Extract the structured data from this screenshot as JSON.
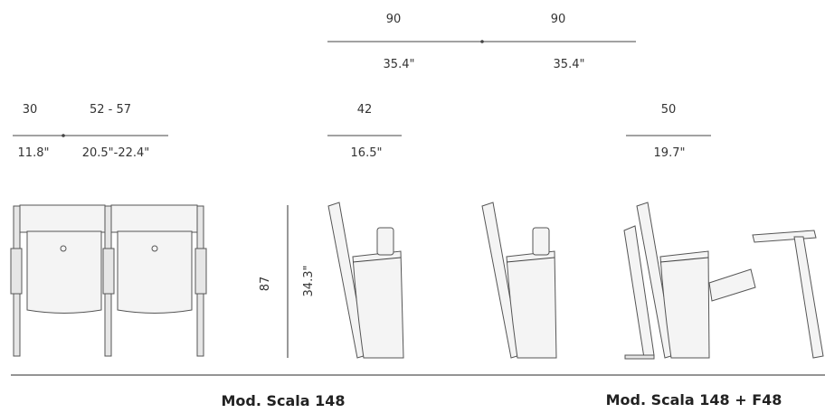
{
  "dimensions": {
    "top_left_cm": "90",
    "top_right_cm": "90",
    "top_left_in": "35.4\"",
    "top_right_in": "35.4\"",
    "front_depth_cm": "30",
    "front_width_cm": "52 - 57",
    "front_depth_in": "11.8\"",
    "front_width_in": "20.5\"-22.4\"",
    "side_cm": "42",
    "side_in": "16.5\"",
    "tablet_cm": "50",
    "tablet_in": "19.7\"",
    "height_cm": "87",
    "height_in": "34.3\""
  },
  "captions": {
    "model_left": "Mod. Scala 148",
    "model_right": "Mod. Scala 148 + F48"
  }
}
